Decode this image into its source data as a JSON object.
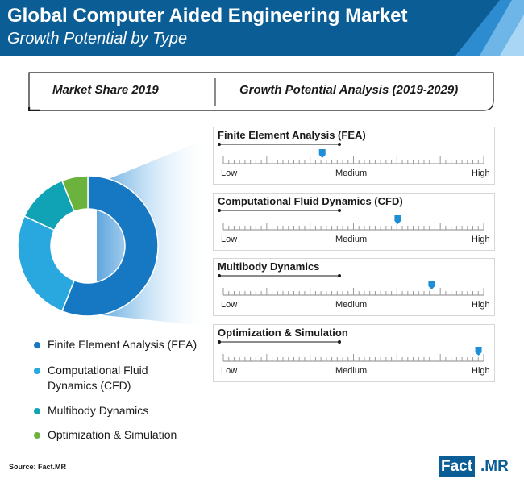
{
  "header": {
    "title": "Global Computer Aided Engineering Market",
    "subtitle": "Growth Potential by Type"
  },
  "tabs": {
    "left": "Market Share 2019",
    "right": "Growth Potential Analysis (2019-2029)"
  },
  "colors": {
    "header_bg": "#0b5d96",
    "fea": "#1678c2",
    "cfd": "#29a8e0",
    "multibody": "#0fa3b5",
    "optimization": "#6cb33e",
    "marker": "#1e8fd6"
  },
  "chart_data": [
    {
      "type": "pie",
      "variant": "donut",
      "title": "Market Share 2019",
      "slices": [
        {
          "label": "Finite Element Analysis (FEA)",
          "value": 56,
          "color": "#1678c2"
        },
        {
          "label": "Computational Fluid Dynamics (CFD)",
          "value": 26,
          "color": "#29a8e0"
        },
        {
          "label": "Multibody Dynamics",
          "value": 12,
          "color": "#0fa3b5"
        },
        {
          "label": "Optimization & Simulation",
          "value": 6,
          "color": "#6cb33e"
        }
      ],
      "legend_position": "bottom-left"
    },
    {
      "type": "table",
      "title": "Growth Potential Analysis (2019-2029)",
      "scale": {
        "low": "Low",
        "medium": "Medium",
        "high": "High"
      },
      "rows": [
        {
          "label": "Finite Element Analysis (FEA)",
          "level": 0.38
        },
        {
          "label": "Computational Fluid Dynamics (CFD)",
          "level": 0.67
        },
        {
          "label": "Multibody Dynamics",
          "level": 0.8
        },
        {
          "label": "Optimization & Simulation",
          "level": 0.98
        }
      ]
    }
  ],
  "legend": {
    "items": [
      {
        "label": "Finite Element Analysis (FEA)",
        "color": "#1678c2"
      },
      {
        "label": "Computational Fluid Dynamics (CFD)",
        "color": "#29a8e0"
      },
      {
        "label": "Multibody Dynamics",
        "color": "#0fa3b5"
      },
      {
        "label": "Optimization & Simulation",
        "color": "#6cb33e"
      }
    ]
  },
  "footer": {
    "source": "Source: Fact.MR",
    "logo_fact": "Fact",
    "logo_mr": ".MR"
  }
}
